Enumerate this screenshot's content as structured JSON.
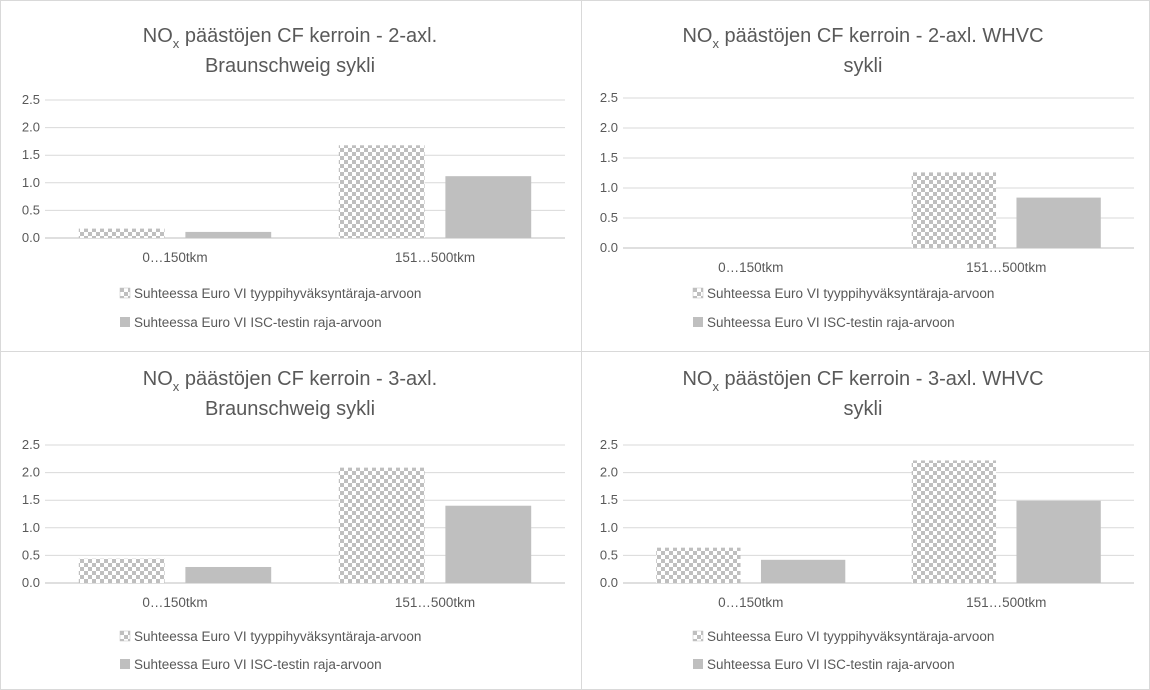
{
  "chart_data": [
    {
      "type": "bar",
      "title_line1_main": "NO",
      "title_line1_sub": "x",
      "title_line1_rest": " päästöjen CF kerroin - 2-axl.",
      "title_line2": "Braunschweig sykli",
      "categories": [
        "0…150tkm",
        "151…500tkm"
      ],
      "yticks": [
        "0.0",
        "0.5",
        "1.0",
        "1.5",
        "2.0",
        "2.5"
      ],
      "ylim": [
        0,
        2.5
      ],
      "series": [
        {
          "name": "Suhteessa Euro VI tyyppihyväksyntäraja-arvoon",
          "pattern": "checker",
          "values": [
            0.17,
            1.68
          ]
        },
        {
          "name": "Suhteessa Euro VI ISC-testin raja-arvoon",
          "pattern": "solid",
          "values": [
            0.11,
            1.12
          ]
        }
      ],
      "colors": {
        "solid": "#bfbfbf",
        "checker_dark": "#bfbfbf",
        "checker_light": "#ffffff"
      },
      "legend_position": "bottom",
      "grid": true
    },
    {
      "type": "bar",
      "title_line1_main": "NO",
      "title_line1_sub": "x",
      "title_line1_rest": " päästöjen CF kerroin - 2-axl. WHVC",
      "title_line2": "sykli",
      "categories": [
        "0…150tkm",
        "151…500tkm"
      ],
      "yticks": [
        "0.0",
        "0.5",
        "1.0",
        "1.5",
        "2.0",
        "2.5"
      ],
      "ylim": [
        0,
        2.5
      ],
      "series": [
        {
          "name": "Suhteessa Euro VI tyyppihyväksyntäraja-arvoon",
          "pattern": "checker",
          "values": [
            0,
            1.26
          ]
        },
        {
          "name": "Suhteessa Euro VI ISC-testin raja-arvoon",
          "pattern": "solid",
          "values": [
            0,
            0.84
          ]
        }
      ],
      "colors": {
        "solid": "#bfbfbf",
        "checker_dark": "#bfbfbf",
        "checker_light": "#ffffff"
      },
      "legend_position": "bottom",
      "grid": true
    },
    {
      "type": "bar",
      "title_line1_main": "NO",
      "title_line1_sub": "x",
      "title_line1_rest": " päästöjen CF kerroin - 3-axl.",
      "title_line2": "Braunschweig sykli",
      "categories": [
        "0…150tkm",
        "151…500tkm"
      ],
      "yticks": [
        "0.0",
        "0.5",
        "1.0",
        "1.5",
        "2.0",
        "2.5"
      ],
      "ylim": [
        0,
        2.5
      ],
      "series": [
        {
          "name": "Suhteessa Euro VI tyyppihyväksyntäraja-arvoon",
          "pattern": "checker",
          "values": [
            0.44,
            2.09
          ]
        },
        {
          "name": "Suhteessa Euro VI ISC-testin raja-arvoon",
          "pattern": "solid",
          "values": [
            0.29,
            1.4
          ]
        }
      ],
      "colors": {
        "solid": "#bfbfbf",
        "checker_dark": "#bfbfbf",
        "checker_light": "#ffffff"
      },
      "legend_position": "bottom",
      "grid": true
    },
    {
      "type": "bar",
      "title_line1_main": "NO",
      "title_line1_sub": "x",
      "title_line1_rest": " päästöjen CF kerroin - 3-axl. WHVC",
      "title_line2": "sykli",
      "categories": [
        "0…150tkm",
        "151…500tkm"
      ],
      "yticks": [
        "0.0",
        "0.5",
        "1.0",
        "1.5",
        "2.0",
        "2.5"
      ],
      "ylim": [
        0,
        2.5
      ],
      "series": [
        {
          "name": "Suhteessa Euro VI tyyppihyväksyntäraja-arvoon",
          "pattern": "checker",
          "values": [
            0.64,
            2.22
          ]
        },
        {
          "name": "Suhteessa Euro VI ISC-testin raja-arvoon",
          "pattern": "solid",
          "values": [
            0.42,
            1.49
          ]
        }
      ],
      "colors": {
        "solid": "#bfbfbf",
        "checker_dark": "#bfbfbf",
        "checker_light": "#ffffff"
      },
      "legend_position": "bottom",
      "grid": true
    }
  ]
}
